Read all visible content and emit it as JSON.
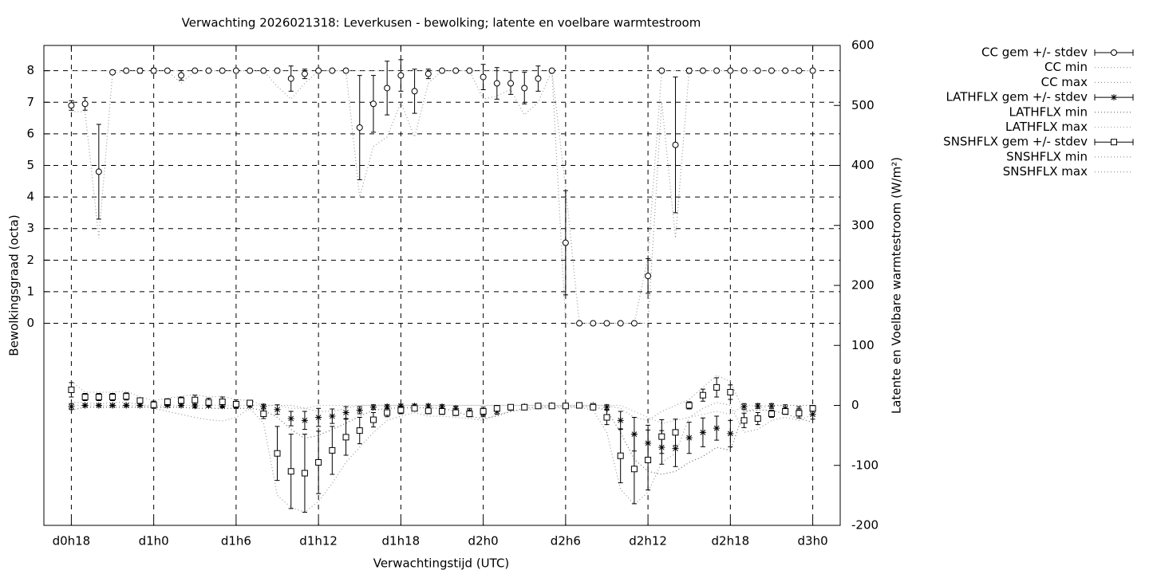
{
  "chart_data": {
    "type": "errorbar-line",
    "title": "Verwachting 2026021318: Leverkusen - bewolking; latente en voelbare warmtestroom",
    "x_label": "Verwachtingstijd (UTC)",
    "y_label": "Bewolkingsgraad (octa)",
    "y2_label": "Latente en Voelbare warmtestroom (W/m²)",
    "grid": true,
    "legend_position": "right",
    "xlim": [
      16,
      74
    ],
    "xticks": [
      {
        "value": 18,
        "label": "d0h18"
      },
      {
        "value": 24,
        "label": "d1h0"
      },
      {
        "value": 30,
        "label": "d1h6"
      },
      {
        "value": 36,
        "label": "d1h12"
      },
      {
        "value": 42,
        "label": "d1h18"
      },
      {
        "value": 48,
        "label": "d2h0"
      },
      {
        "value": 54,
        "label": "d2h6"
      },
      {
        "value": 60,
        "label": "d2h12"
      },
      {
        "value": 66,
        "label": "d2h18"
      },
      {
        "value": 72,
        "label": "d3h0"
      }
    ],
    "ylim": [
      -6.4,
      8.8
    ],
    "yticks": [
      0,
      1,
      2,
      3,
      4,
      5,
      6,
      7,
      8
    ],
    "y2lim": [
      -200,
      600
    ],
    "y2ticks": [
      -200,
      -100,
      0,
      100,
      200,
      300,
      400,
      500,
      600
    ],
    "x": [
      18,
      19,
      20,
      21,
      22,
      23,
      24,
      25,
      26,
      27,
      28,
      29,
      30,
      31,
      32,
      33,
      34,
      35,
      36,
      37,
      38,
      39,
      40,
      41,
      42,
      43,
      44,
      45,
      46,
      47,
      48,
      49,
      50,
      51,
      52,
      53,
      54,
      55,
      56,
      57,
      58,
      59,
      60,
      61,
      62,
      63,
      64,
      65,
      66,
      67,
      68,
      69,
      70,
      71,
      72
    ],
    "series": [
      {
        "name": "CC gem +/- stdev",
        "color": "#000000",
        "style": "errorbars",
        "marker": "circle",
        "axis": "y",
        "values": [
          6.9,
          6.95,
          4.8,
          7.95,
          8,
          8,
          8,
          8,
          7.85,
          8,
          8,
          8,
          8,
          8,
          8,
          8,
          7.75,
          7.9,
          8,
          8,
          8,
          6.2,
          6.95,
          7.45,
          7.85,
          7.35,
          7.9,
          8,
          8,
          8,
          7.8,
          7.6,
          7.6,
          7.45,
          7.75,
          8,
          2.55,
          0,
          0,
          0,
          0,
          0,
          1.5,
          8,
          5.65,
          8,
          8,
          8,
          8,
          8,
          8,
          8,
          8,
          8,
          8
        ],
        "errors": [
          0.15,
          0.2,
          1.5,
          0.05,
          0,
          0.08,
          0.08,
          0,
          0.15,
          0,
          0,
          0,
          0,
          0,
          0,
          0,
          0.4,
          0.15,
          0.05,
          0,
          0,
          1.65,
          0.9,
          0.85,
          0.5,
          0.7,
          0.15,
          0,
          0,
          0,
          0.4,
          0.5,
          0.35,
          0.5,
          0.4,
          0,
          1.65,
          0,
          0,
          0,
          0,
          0,
          0.55,
          0,
          2.15,
          0.08,
          0,
          0,
          0,
          0,
          0,
          0,
          0,
          0,
          0
        ]
      },
      {
        "name": "CC min",
        "color": "#999999",
        "style": "dotted",
        "axis": "y",
        "values": [
          6.7,
          6.7,
          2.7,
          7.9,
          8,
          8,
          8,
          8,
          7.6,
          8,
          8,
          8,
          8,
          8,
          8,
          7.5,
          7.1,
          7.6,
          8,
          8,
          8,
          4,
          5.6,
          5.9,
          7,
          5.9,
          7.6,
          8,
          8,
          8,
          7.1,
          7.2,
          7.4,
          6.6,
          7,
          8,
          0,
          0,
          0,
          0,
          0,
          0,
          0,
          7,
          2.7,
          8,
          8,
          8,
          8,
          8,
          8,
          8,
          8,
          8,
          8
        ]
      },
      {
        "name": "CC max",
        "color": "#999999",
        "style": "dotted",
        "axis": "y",
        "values": [
          8,
          8,
          8,
          8,
          8,
          8,
          8,
          8,
          8,
          8,
          8,
          8,
          8,
          8,
          8,
          8,
          8,
          8,
          8,
          8,
          8,
          8,
          8,
          8,
          8,
          8,
          8,
          8,
          8,
          8,
          8,
          8,
          8,
          8,
          8,
          8,
          4.3,
          0,
          0,
          0,
          0,
          0,
          2.1,
          8,
          8,
          8,
          8,
          8,
          8,
          8,
          8,
          8,
          8,
          8,
          8
        ]
      },
      {
        "name": "LATHFLX gem +/- stdev",
        "color": "#000000",
        "style": "errorbars",
        "marker": "asterisk",
        "axis": "y2",
        "values": [
          -2,
          0,
          0,
          0,
          0,
          0,
          0,
          0,
          0,
          -1,
          0,
          -1,
          -1,
          0,
          -2,
          -7,
          -22,
          -25,
          -20,
          -18,
          -12,
          -8,
          -3,
          -2,
          -1,
          -1,
          -1,
          -2,
          -5,
          -10,
          -13,
          -10,
          -4,
          -2,
          -1,
          0,
          0,
          0,
          0,
          -3,
          -25,
          -48,
          -63,
          -70,
          -72,
          -54,
          -45,
          -38,
          -47,
          -2,
          -1,
          -1,
          -5,
          -10,
          -15
        ],
        "errors": [
          5,
          2,
          2,
          2,
          2,
          2,
          2,
          2,
          2,
          3,
          3,
          3,
          3,
          3,
          4,
          8,
          12,
          15,
          15,
          12,
          10,
          6,
          4,
          3,
          3,
          3,
          3,
          3,
          4,
          5,
          6,
          5,
          4,
          3,
          2,
          2,
          2,
          2,
          2,
          4,
          15,
          28,
          30,
          28,
          30,
          26,
          24,
          20,
          22,
          5,
          4,
          4,
          6,
          8,
          8
        ]
      },
      {
        "name": "LATHFLX min",
        "color": "#666666",
        "style": "dotted",
        "axis": "y2",
        "values": [
          -8,
          -3,
          -3,
          -3,
          -3,
          -3,
          -3,
          -3,
          -3,
          -5,
          -5,
          -5,
          -5,
          -5,
          -8,
          -20,
          -40,
          -55,
          -50,
          -40,
          -30,
          -18,
          -8,
          -5,
          -4,
          -4,
          -4,
          -5,
          -10,
          -18,
          -22,
          -18,
          -10,
          -5,
          -3,
          -2,
          -2,
          -2,
          -2,
          -8,
          -45,
          -90,
          -110,
          -115,
          -110,
          -95,
          -85,
          -70,
          -75,
          -10,
          -8,
          -8,
          -14,
          -22,
          -28
        ]
      },
      {
        "name": "LATHFLX max",
        "color": "#aaaaaa",
        "style": "dotted",
        "axis": "y2",
        "values": [
          0,
          0,
          0,
          0,
          0,
          0,
          0,
          0,
          0,
          0,
          0,
          0,
          0,
          0,
          0,
          0,
          -5,
          -5,
          0,
          0,
          0,
          0,
          0,
          0,
          0,
          0,
          0,
          0,
          0,
          0,
          0,
          0,
          0,
          0,
          0,
          0,
          0,
          0,
          0,
          0,
          0,
          -10,
          -20,
          -30,
          -25,
          -20,
          -15,
          -10,
          -15,
          0,
          0,
          0,
          0,
          0,
          0
        ]
      },
      {
        "name": "SNSHFLX gem +/- stdev",
        "color": "#000000",
        "style": "errorbars",
        "marker": "square",
        "axis": "y2",
        "values": [
          26,
          14,
          14,
          14,
          15,
          8,
          1,
          6,
          8,
          9,
          5,
          6,
          2,
          4,
          -14,
          -80,
          -110,
          -113,
          -95,
          -75,
          -53,
          -42,
          -24,
          -12,
          -8,
          -5,
          -9,
          -10,
          -12,
          -14,
          -10,
          -5,
          -3,
          -3,
          -1,
          -1,
          -1,
          0,
          -3,
          -20,
          -84,
          -106,
          -91,
          -52,
          -45,
          0,
          17,
          30,
          22,
          -25,
          -22,
          -14,
          -10,
          -13,
          -5
        ],
        "errors": [
          12,
          6,
          6,
          6,
          6,
          4,
          6,
          5,
          6,
          8,
          7,
          8,
          7,
          4,
          8,
          45,
          62,
          65,
          52,
          40,
          30,
          22,
          12,
          7,
          6,
          4,
          5,
          5,
          5,
          5,
          7,
          5,
          4,
          3,
          2,
          2,
          2,
          2,
          3,
          12,
          45,
          58,
          50,
          28,
          22,
          6,
          10,
          16,
          12,
          12,
          10,
          6,
          5,
          8,
          5
        ]
      },
      {
        "name": "SNSHFLX min",
        "color": "#999999",
        "style": "dotted",
        "axis": "y2",
        "values": [
          5,
          5,
          2,
          5,
          5,
          2,
          -5,
          -10,
          -15,
          -20,
          -24,
          -26,
          -20,
          -5,
          -30,
          -150,
          -170,
          -178,
          -160,
          -130,
          -95,
          -70,
          -45,
          -25,
          -18,
          -12,
          -18,
          -18,
          -20,
          -22,
          -25,
          -15,
          -10,
          -8,
          -5,
          -4,
          -4,
          -3,
          -8,
          -45,
          -140,
          -165,
          -145,
          -95,
          -80,
          -20,
          -5,
          5,
          0,
          -45,
          -40,
          -25,
          -20,
          -25,
          -15
        ]
      },
      {
        "name": "SNSHFLX max",
        "color": "#999999",
        "style": "dotted",
        "axis": "y2",
        "values": [
          40,
          22,
          22,
          22,
          24,
          14,
          8,
          12,
          15,
          18,
          14,
          15,
          10,
          8,
          0,
          0,
          0,
          -5,
          -10,
          -10,
          -5,
          0,
          0,
          0,
          0,
          0,
          0,
          0,
          0,
          0,
          0,
          0,
          0,
          0,
          0,
          0,
          0,
          0,
          0,
          0,
          -5,
          -20,
          -25,
          -10,
          0,
          10,
          30,
          50,
          40,
          -10,
          -5,
          0,
          0,
          0,
          0
        ]
      }
    ]
  }
}
